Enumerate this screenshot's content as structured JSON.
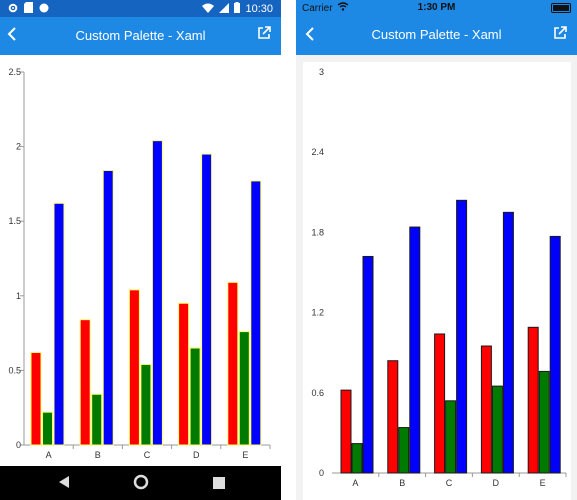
{
  "android": {
    "status_time": "10:30",
    "title": "Custom Palette - Xaml",
    "icons": {
      "back": "back-arrow-icon",
      "external": "open-external-icon"
    }
  },
  "ios": {
    "carrier": "Carrier",
    "status_time": "1:30 PM",
    "title": "Custom Palette - Xaml"
  },
  "colors": {
    "appbar": "#1e88e5",
    "android_status": "#1565c0",
    "bar_red": "#ff0000",
    "bar_green": "#007a00",
    "bar_blue": "#0000ff",
    "android_bar_border": "#ffff66",
    "ios_bar_border": "#1a1a1a"
  },
  "chart_data": [
    {
      "type": "bar",
      "platform": "android",
      "categories": [
        "A",
        "B",
        "C",
        "D",
        "E"
      ],
      "series": [
        {
          "values": [
            0.62,
            0.84,
            1.04,
            0.95,
            1.09
          ]
        },
        {
          "values": [
            0.22,
            0.34,
            0.54,
            0.65,
            0.76
          ]
        },
        {
          "values": [
            1.62,
            1.84,
            2.04,
            1.95,
            1.77
          ]
        }
      ],
      "yticks": [
        "0",
        "0.5",
        "1",
        "1.5",
        "2",
        "2.5"
      ],
      "ylim": [
        0,
        2.5
      ]
    },
    {
      "type": "bar",
      "platform": "ios",
      "categories": [
        "A",
        "B",
        "C",
        "D",
        "E"
      ],
      "series": [
        {
          "values": [
            0.62,
            0.84,
            1.04,
            0.95,
            1.09
          ]
        },
        {
          "values": [
            0.22,
            0.34,
            0.54,
            0.65,
            0.76
          ]
        },
        {
          "values": [
            1.62,
            1.84,
            2.04,
            1.95,
            1.77
          ]
        }
      ],
      "yticks": [
        "0",
        "0.6",
        "1.2",
        "1.8",
        "2.4",
        "3"
      ],
      "ylim": [
        0,
        3
      ]
    }
  ]
}
